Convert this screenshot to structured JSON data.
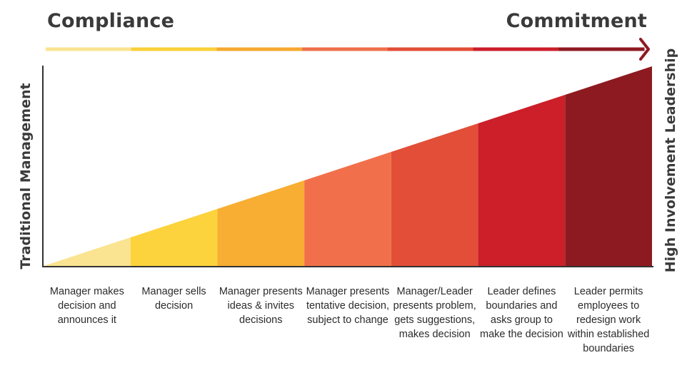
{
  "headings": {
    "left": "Compliance",
    "right": "Commitment"
  },
  "side_labels": {
    "left": "Traditional Management",
    "right": "High Involvement Leadership"
  },
  "arrow_colors": [
    "#FBE491",
    "#FAD03A",
    "#F6A930",
    "#EE6F4A",
    "#E14C37",
    "#CB1E2A",
    "#8E1A22"
  ],
  "steps": [
    {
      "label": "Manager makes decision and announces it",
      "color": "#FBE491"
    },
    {
      "label": "Manager sells decision",
      "color": "#FCD33D"
    },
    {
      "label": "Manager presents ideas & invites decisions",
      "color": "#F7AE32"
    },
    {
      "label": "Manager presents tentative decision, subject to change",
      "color": "#F1704B"
    },
    {
      "label": "Manager/Leader presents problem, gets suggestions, makes decision",
      "color": "#E24E37"
    },
    {
      "label": "Leader defines boundaries and asks group to make the decision",
      "color": "#CC1F29"
    },
    {
      "label": "Leader permits employees to redesign work within established boundaries",
      "color": "#8D1A20"
    }
  ]
}
